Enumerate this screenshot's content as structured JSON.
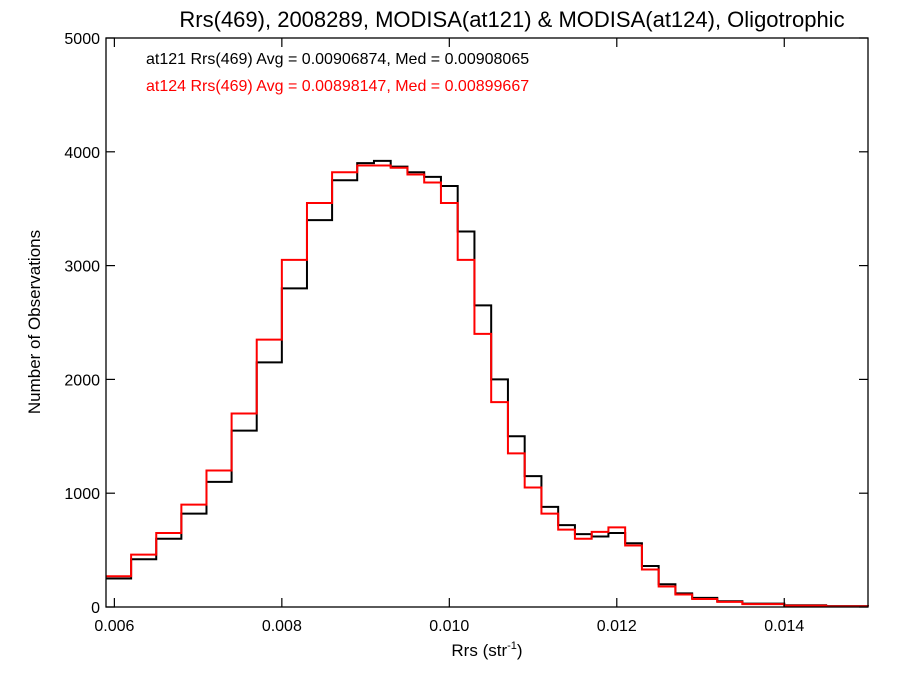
{
  "chart_data": {
    "type": "line",
    "title": "Rrs(469), 2008289, MODISA(at121) & MODISA(at124), Oligotrophic",
    "xlabel": "Rrs (str",
    "xlabel_sup": "-1",
    "xlabel_suffix": ")",
    "ylabel": "Number of Observations",
    "xlim": [
      0.0059,
      0.015
    ],
    "ylim": [
      0,
      5000
    ],
    "xticks": [
      0.006,
      0.008,
      0.01,
      0.012,
      0.014
    ],
    "xtick_labels": [
      "0.006",
      "0.008",
      "0.010",
      "0.012",
      "0.014"
    ],
    "yticks": [
      0,
      1000,
      2000,
      3000,
      4000,
      5000
    ],
    "ytick_labels": [
      "0",
      "1000",
      "2000",
      "3000",
      "4000",
      "5000"
    ],
    "grid": false,
    "legend": [
      {
        "text": "at121 Rrs(469) Avg = 0.00906874, Med = 0.00908065",
        "color": "#000000"
      },
      {
        "text": "at124 Rrs(469) Avg = 0.00898147, Med = 0.00899667",
        "color": "#ff0000"
      }
    ],
    "legend_position": "top-left",
    "step": "histogram",
    "x": [
      0.0059,
      0.0062,
      0.0065,
      0.0068,
      0.0071,
      0.0074,
      0.0077,
      0.008,
      0.0083,
      0.0086,
      0.0089,
      0.0091,
      0.0093,
      0.0095,
      0.0097,
      0.0099,
      0.0101,
      0.0103,
      0.0105,
      0.0107,
      0.0109,
      0.0111,
      0.0113,
      0.0115,
      0.0117,
      0.0119,
      0.0121,
      0.0123,
      0.0125,
      0.0127,
      0.0129,
      0.0132,
      0.0135,
      0.014,
      0.0145,
      0.015
    ],
    "series": [
      {
        "name": "at121",
        "color": "#000000",
        "values": [
          250,
          420,
          600,
          820,
          1100,
          1550,
          2150,
          2800,
          3400,
          3750,
          3900,
          3920,
          3870,
          3820,
          3780,
          3700,
          3300,
          2650,
          2000,
          1500,
          1150,
          880,
          720,
          640,
          620,
          650,
          560,
          360,
          200,
          120,
          80,
          50,
          30,
          15,
          8,
          5
        ]
      },
      {
        "name": "at124",
        "color": "#ff0000",
        "values": [
          270,
          460,
          650,
          900,
          1200,
          1700,
          2350,
          3050,
          3550,
          3820,
          3880,
          3880,
          3860,
          3800,
          3730,
          3550,
          3050,
          2400,
          1800,
          1350,
          1050,
          820,
          680,
          600,
          660,
          700,
          540,
          330,
          180,
          110,
          70,
          45,
          25,
          12,
          6,
          4
        ]
      }
    ]
  }
}
